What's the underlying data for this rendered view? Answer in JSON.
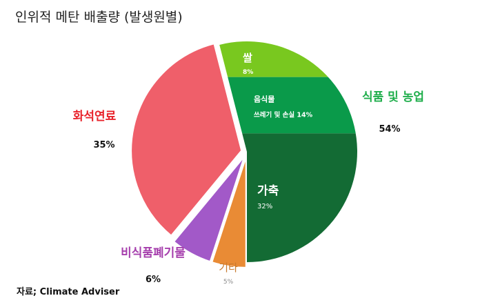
{
  "title": "인위적 메탄 배출량 (발생원별)",
  "source": "자료; Climate Adviser",
  "chart_data": {
    "type": "pie",
    "title": "인위적 메탄 배출량 (발생원별)",
    "slices": [
      {
        "name": "식품 및 농업",
        "value": 54,
        "label": "54%",
        "color": "#1fae4b",
        "sub": [
          {
            "name": "쌀",
            "value": 8,
            "label": "8%",
            "color": "#79c81f"
          },
          {
            "name": "음식물",
            "name2": "쓰레기 및 손실 14%",
            "value": 14,
            "color": "#0a9a4a"
          },
          {
            "name": "가축",
            "value": 32,
            "label": "32%",
            "color": "#136b34"
          }
        ]
      },
      {
        "name": "기타",
        "value": 5,
        "label": "5%",
        "color": "#e98b35",
        "label_color": "#c77a2e"
      },
      {
        "name": "비식품폐기물",
        "value": 6,
        "label": "6%",
        "color": "#a259c8",
        "label_color": "#a63fad"
      },
      {
        "name": "화석연료",
        "value": 35,
        "label": "35%",
        "color": "#ef5f6a",
        "label_color": "#e8232b"
      }
    ]
  }
}
